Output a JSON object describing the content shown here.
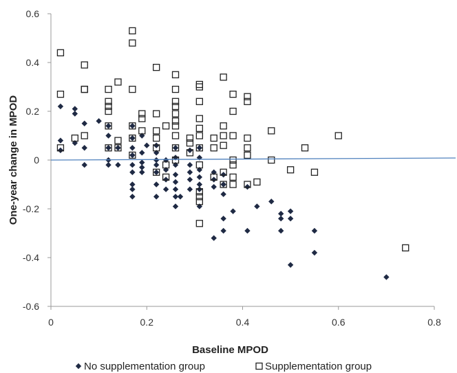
{
  "chart_data": {
    "type": "scatter",
    "title": "",
    "xlabel": "Baseline MPOD",
    "ylabel": "One-year change in MPOD",
    "xlim": [
      0,
      0.8
    ],
    "ylim": [
      -0.6,
      0.6
    ],
    "x_ticks": [
      0,
      0.2,
      0.4,
      0.6,
      0.8
    ],
    "x_tick_labels": [
      "0",
      "0.2",
      "0.4",
      "0.6",
      "0.8"
    ],
    "y_ticks": [
      -0.6,
      -0.4,
      -0.2,
      0,
      0.2,
      0.4,
      0.6
    ],
    "y_tick_labels": [
      "-0.6",
      "-0.4",
      "-0.2",
      "0",
      "0.2",
      "0.4",
      "0.6"
    ],
    "grid": false,
    "legend_position": "bottom",
    "reference_line": {
      "y": 0,
      "color": "#4f81bd"
    },
    "series": [
      {
        "name": "No supplementation group",
        "marker": "filled-diamond",
        "color": "#1f2a44",
        "points": [
          [
            0.02,
            0.22
          ],
          [
            0.02,
            0.08
          ],
          [
            0.02,
            0.04
          ],
          [
            0.05,
            0.21
          ],
          [
            0.05,
            0.19
          ],
          [
            0.05,
            0.07
          ],
          [
            0.07,
            0.15
          ],
          [
            0.07,
            0.05
          ],
          [
            0.07,
            -0.02
          ],
          [
            0.1,
            0.16
          ],
          [
            0.12,
            0.14
          ],
          [
            0.12,
            0.1
          ],
          [
            0.12,
            0.05
          ],
          [
            0.12,
            0.0
          ],
          [
            0.12,
            -0.02
          ],
          [
            0.14,
            0.05
          ],
          [
            0.14,
            -0.02
          ],
          [
            0.17,
            0.14
          ],
          [
            0.17,
            0.09
          ],
          [
            0.17,
            0.05
          ],
          [
            0.17,
            0.02
          ],
          [
            0.17,
            -0.02
          ],
          [
            0.17,
            -0.05
          ],
          [
            0.17,
            -0.1
          ],
          [
            0.17,
            -0.12
          ],
          [
            0.17,
            -0.15
          ],
          [
            0.19,
            0.1
          ],
          [
            0.19,
            0.03
          ],
          [
            0.19,
            -0.01
          ],
          [
            0.19,
            -0.03
          ],
          [
            0.19,
            -0.05
          ],
          [
            0.2,
            0.06
          ],
          [
            0.22,
            0.06
          ],
          [
            0.22,
            0.03
          ],
          [
            0.22,
            0.0
          ],
          [
            0.22,
            -0.02
          ],
          [
            0.22,
            -0.05
          ],
          [
            0.22,
            -0.1
          ],
          [
            0.22,
            -0.15
          ],
          [
            0.24,
            0.0
          ],
          [
            0.24,
            -0.04
          ],
          [
            0.24,
            -0.08
          ],
          [
            0.24,
            -0.12
          ],
          [
            0.26,
            0.05
          ],
          [
            0.26,
            0.01
          ],
          [
            0.26,
            -0.02
          ],
          [
            0.26,
            -0.06
          ],
          [
            0.26,
            -0.09
          ],
          [
            0.26,
            -0.12
          ],
          [
            0.26,
            -0.15
          ],
          [
            0.26,
            -0.19
          ],
          [
            0.27,
            -0.15
          ],
          [
            0.29,
            0.04
          ],
          [
            0.29,
            -0.02
          ],
          [
            0.29,
            -0.05
          ],
          [
            0.29,
            -0.08
          ],
          [
            0.29,
            -0.12
          ],
          [
            0.31,
            0.05
          ],
          [
            0.31,
            0.01
          ],
          [
            0.31,
            -0.04
          ],
          [
            0.31,
            -0.07
          ],
          [
            0.31,
            -0.1
          ],
          [
            0.31,
            -0.12
          ],
          [
            0.31,
            -0.19
          ],
          [
            0.34,
            -0.05
          ],
          [
            0.34,
            -0.08
          ],
          [
            0.34,
            -0.11
          ],
          [
            0.34,
            -0.32
          ],
          [
            0.36,
            -0.06
          ],
          [
            0.36,
            -0.1
          ],
          [
            0.36,
            -0.14
          ],
          [
            0.36,
            -0.24
          ],
          [
            0.36,
            -0.29
          ],
          [
            0.38,
            -0.21
          ],
          [
            0.41,
            -0.11
          ],
          [
            0.41,
            -0.29
          ],
          [
            0.43,
            -0.19
          ],
          [
            0.46,
            -0.17
          ],
          [
            0.48,
            -0.22
          ],
          [
            0.48,
            -0.24
          ],
          [
            0.48,
            -0.29
          ],
          [
            0.5,
            -0.21
          ],
          [
            0.5,
            -0.24
          ],
          [
            0.5,
            -0.43
          ],
          [
            0.55,
            -0.29
          ],
          [
            0.55,
            -0.38
          ],
          [
            0.7,
            -0.48
          ]
        ]
      },
      {
        "name": "Supplementation group",
        "marker": "open-square",
        "color": "#222222",
        "points": [
          [
            0.02,
            0.44
          ],
          [
            0.02,
            0.27
          ],
          [
            0.02,
            0.05
          ],
          [
            0.05,
            0.09
          ],
          [
            0.07,
            0.39
          ],
          [
            0.07,
            0.29
          ],
          [
            0.07,
            0.29
          ],
          [
            0.07,
            0.1
          ],
          [
            0.12,
            0.29
          ],
          [
            0.12,
            0.24
          ],
          [
            0.12,
            0.22
          ],
          [
            0.12,
            0.2
          ],
          [
            0.12,
            0.14
          ],
          [
            0.12,
            0.05
          ],
          [
            0.14,
            0.32
          ],
          [
            0.14,
            0.08
          ],
          [
            0.14,
            0.05
          ],
          [
            0.17,
            0.53
          ],
          [
            0.17,
            0.48
          ],
          [
            0.17,
            0.29
          ],
          [
            0.17,
            0.14
          ],
          [
            0.17,
            0.09
          ],
          [
            0.17,
            0.02
          ],
          [
            0.19,
            0.19
          ],
          [
            0.19,
            0.17
          ],
          [
            0.19,
            0.12
          ],
          [
            0.22,
            0.38
          ],
          [
            0.22,
            0.19
          ],
          [
            0.22,
            0.12
          ],
          [
            0.22,
            0.09
          ],
          [
            0.22,
            0.05
          ],
          [
            0.22,
            -0.05
          ],
          [
            0.24,
            0.14
          ],
          [
            0.24,
            -0.02
          ],
          [
            0.24,
            -0.07
          ],
          [
            0.26,
            0.35
          ],
          [
            0.26,
            0.29
          ],
          [
            0.26,
            0.24
          ],
          [
            0.26,
            0.22
          ],
          [
            0.26,
            0.19
          ],
          [
            0.26,
            0.16
          ],
          [
            0.26,
            0.14
          ],
          [
            0.26,
            0.1
          ],
          [
            0.26,
            0.05
          ],
          [
            0.26,
            0.0
          ],
          [
            0.29,
            0.09
          ],
          [
            0.29,
            0.07
          ],
          [
            0.29,
            0.03
          ],
          [
            0.31,
            0.31
          ],
          [
            0.31,
            0.3
          ],
          [
            0.31,
            0.24
          ],
          [
            0.31,
            0.17
          ],
          [
            0.31,
            0.13
          ],
          [
            0.31,
            0.1
          ],
          [
            0.31,
            0.05
          ],
          [
            0.31,
            -0.02
          ],
          [
            0.31,
            -0.13
          ],
          [
            0.31,
            -0.15
          ],
          [
            0.31,
            -0.17
          ],
          [
            0.31,
            -0.26
          ],
          [
            0.34,
            0.09
          ],
          [
            0.34,
            0.05
          ],
          [
            0.34,
            -0.07
          ],
          [
            0.36,
            0.34
          ],
          [
            0.36,
            0.14
          ],
          [
            0.36,
            0.1
          ],
          [
            0.36,
            0.06
          ],
          [
            0.36,
            -0.05
          ],
          [
            0.36,
            -0.1
          ],
          [
            0.38,
            0.27
          ],
          [
            0.38,
            0.2
          ],
          [
            0.38,
            0.1
          ],
          [
            0.38,
            0.0
          ],
          [
            0.38,
            -0.02
          ],
          [
            0.38,
            -0.07
          ],
          [
            0.38,
            -0.1
          ],
          [
            0.41,
            0.26
          ],
          [
            0.41,
            0.24
          ],
          [
            0.41,
            0.09
          ],
          [
            0.41,
            0.05
          ],
          [
            0.41,
            0.02
          ],
          [
            0.41,
            -0.1
          ],
          [
            0.43,
            -0.09
          ],
          [
            0.46,
            0.12
          ],
          [
            0.46,
            0.0
          ],
          [
            0.53,
            0.05
          ],
          [
            0.5,
            -0.04
          ],
          [
            0.55,
            -0.05
          ],
          [
            0.6,
            0.1
          ],
          [
            0.74,
            -0.36
          ]
        ]
      }
    ]
  }
}
